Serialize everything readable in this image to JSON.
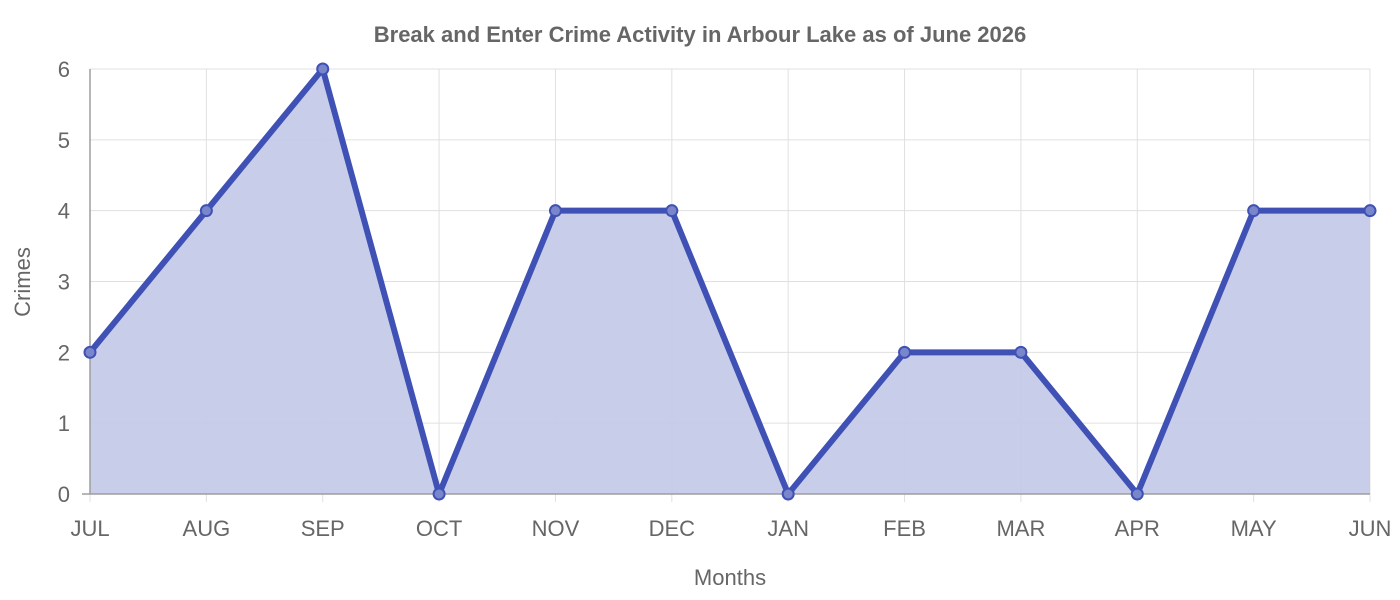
{
  "chart_data": {
    "type": "area",
    "title": "Break and Enter Crime Activity in Arbour Lake as of June 2026",
    "xlabel": "Months",
    "ylabel": "Crimes",
    "categories": [
      "JUL",
      "AUG",
      "SEP",
      "OCT",
      "NOV",
      "DEC",
      "JAN",
      "FEB",
      "MAR",
      "APR",
      "MAY",
      "JUN"
    ],
    "series": [
      {
        "values": [
          2,
          4,
          6,
          0,
          4,
          4,
          0,
          2,
          2,
          0,
          4,
          4
        ]
      }
    ],
    "ylim": [
      0,
      6
    ],
    "yticks": [
      "0",
      "1",
      "2",
      "3",
      "4",
      "5",
      "6"
    ],
    "grid": true,
    "colors": {
      "line": "#3f51b5",
      "fill": "#c5cae9",
      "point_fill": "#7986cb"
    }
  }
}
